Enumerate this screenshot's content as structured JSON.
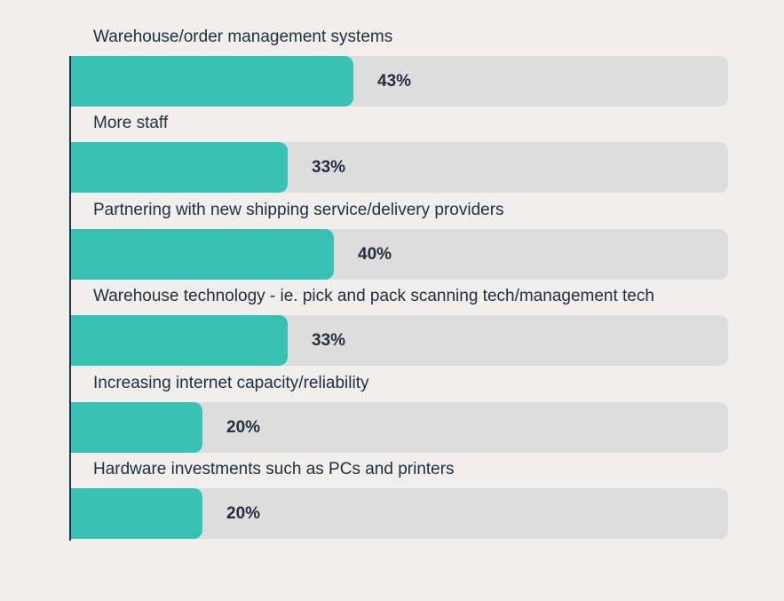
{
  "colors": {
    "bar": "#37c2b4",
    "track": "#dddddd",
    "text": "#232f3e",
    "background": "#f0efed"
  },
  "chart_data": {
    "type": "bar",
    "orientation": "horizontal",
    "categories": [
      "Warehouse/order management systems",
      "More staff",
      "Partnering with new shipping service/delivery providers",
      "Warehouse technology - ie. pick and pack scanning tech/management tech",
      "Increasing internet capacity/reliability",
      "Hardware investments such as PCs and printers"
    ],
    "values": [
      43,
      33,
      40,
      33,
      20,
      20
    ],
    "value_labels": [
      "43%",
      "33%",
      "40%",
      "33%",
      "20%",
      "20%"
    ],
    "xlim": [
      0,
      100
    ],
    "grid": false,
    "legend": "none"
  }
}
